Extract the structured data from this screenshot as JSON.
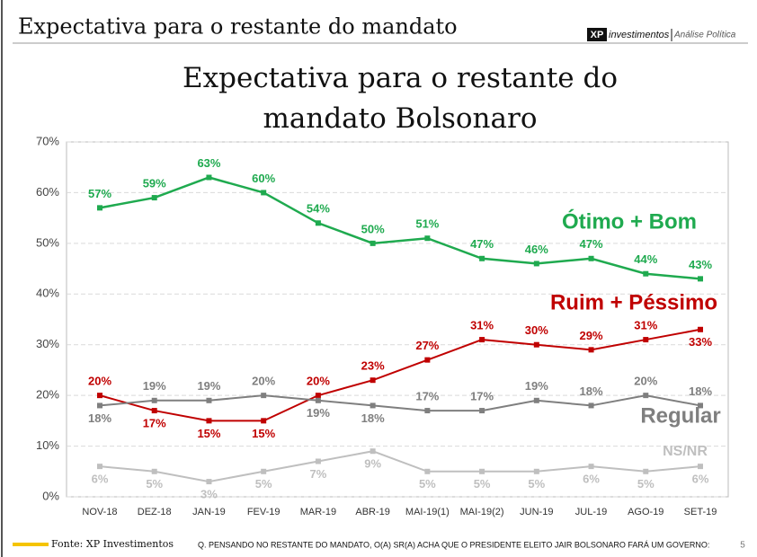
{
  "header": {
    "title": "Expectativa para o restante do mandato",
    "logo_brand": "XP",
    "logo_name": "investimentos",
    "logo_tagline": "Análise Política"
  },
  "chart_data": {
    "type": "line",
    "title": "Expectativa para o restante do mandato Bolsonaro",
    "categories": [
      "NOV-18",
      "DEZ-18",
      "JAN-19",
      "FEV-19",
      "MAR-19",
      "ABR-19",
      "MAI-19(1)",
      "MAI-19(2)",
      "JUN-19",
      "JUL-19",
      "AGO-19",
      "SET-19"
    ],
    "ylim": [
      0,
      70
    ],
    "yticks": [
      {
        "value": 0,
        "label": "0%"
      },
      {
        "value": 10,
        "label": "10%"
      },
      {
        "value": 20,
        "label": "20%"
      },
      {
        "value": 30,
        "label": "30%"
      },
      {
        "value": 40,
        "label": "40%"
      },
      {
        "value": 50,
        "label": "50%"
      },
      {
        "value": 60,
        "label": "60%"
      },
      {
        "value": 70,
        "label": "70%"
      }
    ],
    "grid": true,
    "series": [
      {
        "name": "Ótimo + Bom",
        "color": "#1faa4f",
        "values": [
          57,
          59,
          63,
          60,
          54,
          50,
          51,
          47,
          46,
          47,
          44,
          43
        ],
        "value_labels": [
          "57%",
          "59%",
          "63%",
          "60%",
          "54%",
          "50%",
          "51%",
          "47%",
          "46%",
          "47%",
          "44%",
          "43%"
        ]
      },
      {
        "name": "Ruim + Péssimo",
        "color": "#c00000",
        "values": [
          20,
          17,
          15,
          15,
          20,
          23,
          27,
          31,
          30,
          29,
          31,
          33
        ],
        "value_labels": [
          "20%",
          "17%",
          "15%",
          "15%",
          "20%",
          "23%",
          "27%",
          "31%",
          "30%",
          "29%",
          "31%",
          "33%"
        ]
      },
      {
        "name": "Regular",
        "color": "#7f7f7f",
        "values": [
          18,
          19,
          19,
          20,
          19,
          18,
          17,
          17,
          19,
          18,
          20,
          18
        ],
        "value_labels": [
          "18%",
          "19%",
          "19%",
          "20%",
          "19%",
          "18%",
          "17%",
          "17%",
          "19%",
          "18%",
          "20%",
          "18%"
        ]
      },
      {
        "name": "NS/NR",
        "color": "#bfbfbf",
        "values": [
          6,
          5,
          3,
          5,
          7,
          9,
          5,
          5,
          5,
          6,
          5,
          6
        ],
        "value_labels": [
          "6%",
          "5%",
          "3%",
          "5%",
          "7%",
          "9%",
          "5%",
          "5%",
          "5%",
          "6%",
          "5%",
          "6%"
        ]
      }
    ]
  },
  "footer": {
    "source": "Fonte: XP Investimentos",
    "question": "Q. PENSANDO NO RESTANTE DO MANDATO, O(A) SR(A) ACHA QUE O PRESIDENTE ELEITO JAIR BOLSONARO FARÁ UM GOVERNO:",
    "page": "5"
  }
}
